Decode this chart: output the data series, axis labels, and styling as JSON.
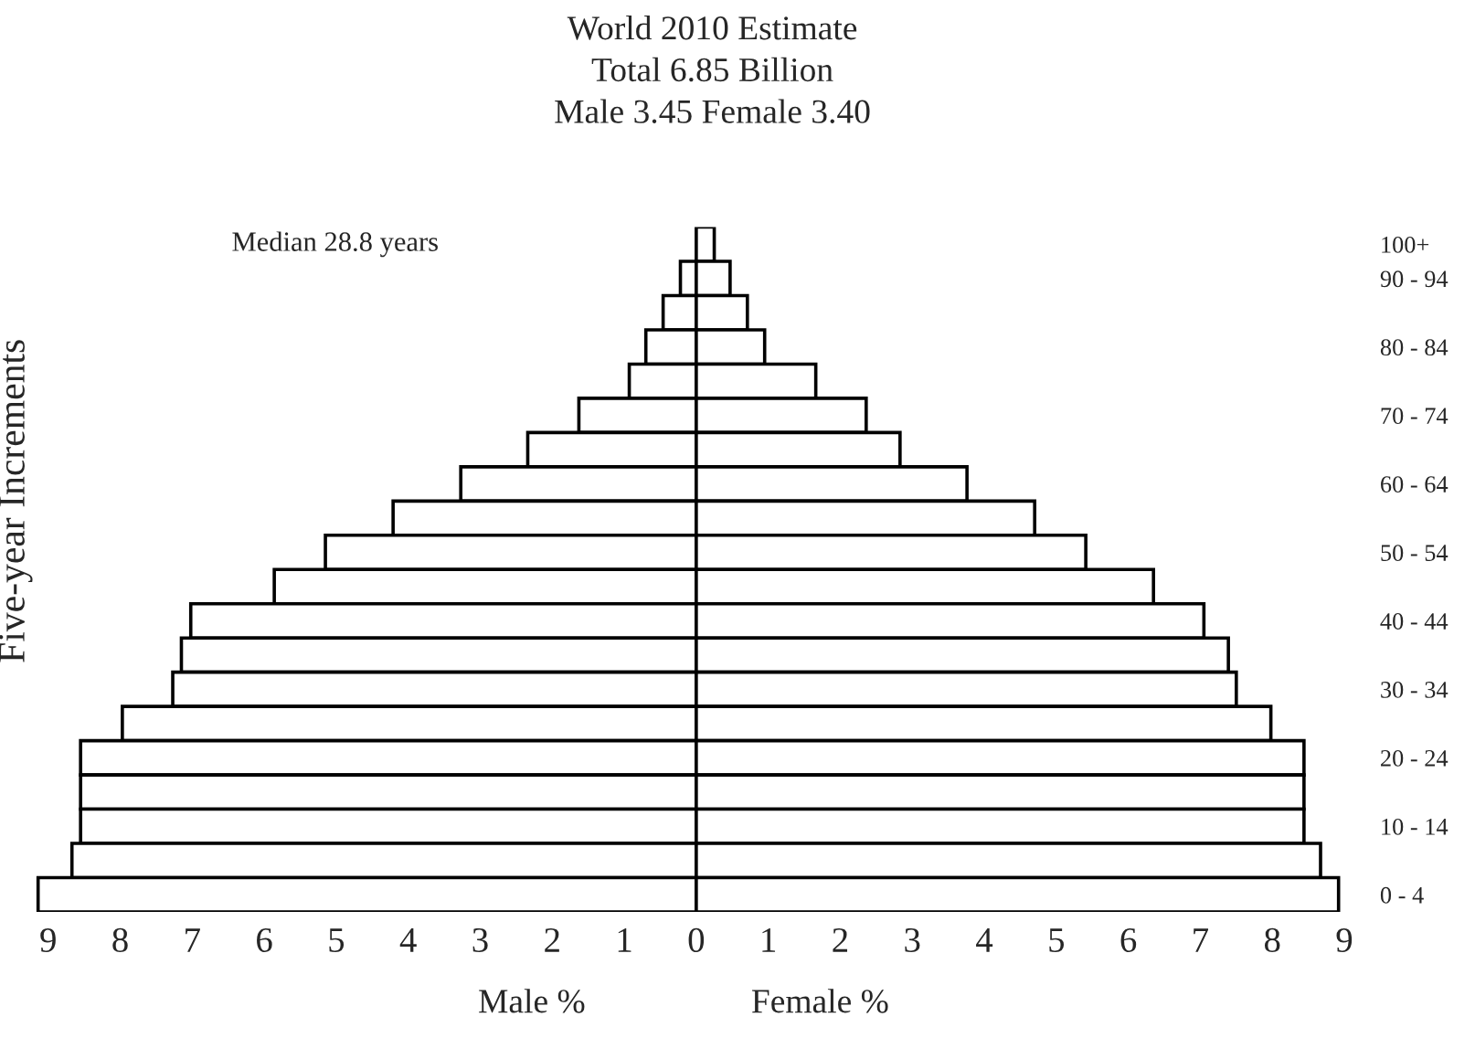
{
  "chart_data": {
    "type": "bar",
    "orientation": "horizontal",
    "stacked": true,
    "title": "World 2010 Estimate",
    "subtitle": "Total 6.85 Billion\nMale 3.45 Female 3.40",
    "ylabel": "Five-year Increments",
    "annotations": [
      "Median 28.8 years"
    ],
    "categories": [
      "100+",
      "90 - 94",
      null,
      "80 - 84",
      null,
      "70 - 74",
      null,
      "60 - 64",
      null,
      "50 - 54",
      null,
      "40 - 44",
      null,
      "30 - 34",
      null,
      "20 - 24",
      null,
      "10 - 14",
      null,
      "0 - 4"
    ],
    "series": [
      {
        "name": "Male %",
        "color": "#ffffff",
        "values": [
          null,
          -0.22,
          -0.46,
          -0.7,
          -0.93,
          -1.63,
          -2.34,
          -3.27,
          -4.21,
          -5.15,
          -5.86,
          -7.02,
          -7.15,
          -7.27,
          -7.97,
          -8.55,
          -8.55,
          -8.55,
          -8.67,
          -9.14
        ]
      },
      {
        "name": "Female %",
        "color": "#ffffff",
        "values": [
          0.25,
          0.47,
          0.71,
          0.95,
          1.66,
          2.36,
          2.83,
          3.76,
          4.7,
          5.41,
          6.35,
          7.05,
          7.39,
          7.5,
          7.98,
          8.44,
          8.44,
          8.44,
          8.67,
          8.92
        ]
      }
    ],
    "xlim": [
      -9.2,
      9.0
    ],
    "xticks": [
      {
        "value": -9,
        "label": "9"
      },
      {
        "value": -8,
        "label": "8"
      },
      {
        "value": -7,
        "label": "7"
      },
      {
        "value": -6,
        "label": "6"
      },
      {
        "value": -5,
        "label": "5"
      },
      {
        "value": -4,
        "label": "4"
      },
      {
        "value": -3,
        "label": "3"
      },
      {
        "value": -2,
        "label": "2"
      },
      {
        "value": -1,
        "label": "1"
      },
      0,
      1,
      2,
      3,
      4,
      5,
      6,
      7,
      8,
      9
    ]
  }
}
